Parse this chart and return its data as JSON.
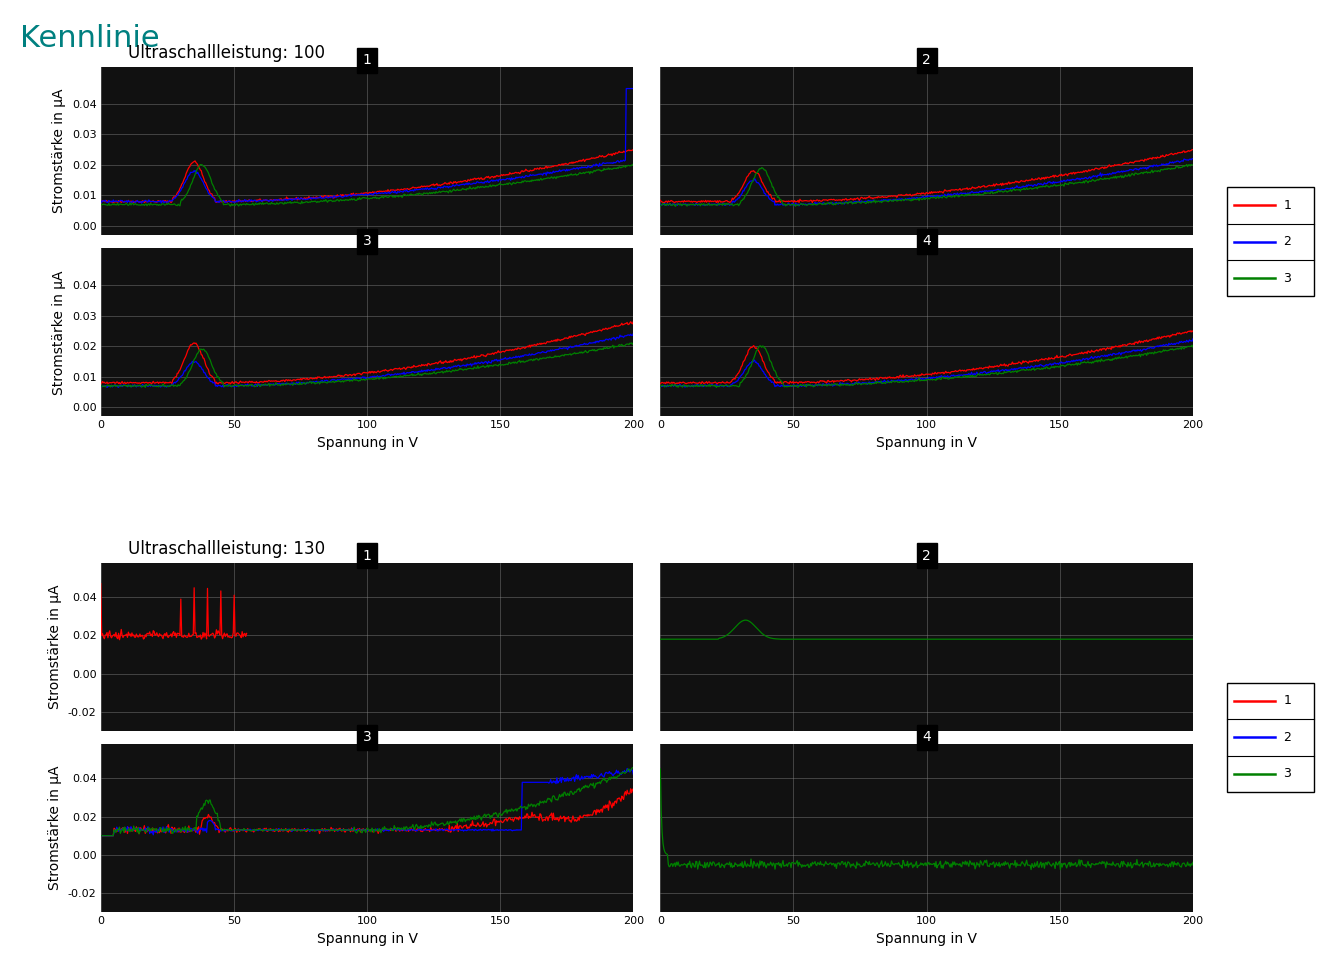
{
  "title": "Kennlinie",
  "title_color": "#008080",
  "groups": [
    {
      "subtitle": "Ultraschallleistung: 100",
      "subplots": [
        {
          "label": "1",
          "ylim": [
            -0.003,
            0.052
          ],
          "yticks": [
            0.0,
            0.01,
            0.02,
            0.03,
            0.04
          ],
          "yticklabels": [
            "0.00",
            "0.01",
            "0.02",
            "0.03",
            "0.04"
          ]
        },
        {
          "label": "2",
          "ylim": [
            -0.003,
            0.052
          ],
          "yticks": [
            0.0,
            0.01,
            0.02,
            0.03,
            0.04
          ],
          "yticklabels": []
        },
        {
          "label": "3",
          "ylim": [
            -0.003,
            0.052
          ],
          "yticks": [
            0.0,
            0.01,
            0.02,
            0.03,
            0.04
          ],
          "yticklabels": [
            "0.00",
            "0.01",
            "0.02",
            "0.03",
            "0.04"
          ]
        },
        {
          "label": "4",
          "ylim": [
            -0.003,
            0.052
          ],
          "yticks": [
            0.0,
            0.01,
            0.02,
            0.03,
            0.04
          ],
          "yticklabels": []
        }
      ]
    },
    {
      "subtitle": "Ultraschallleistung: 130",
      "subplots": [
        {
          "label": "1",
          "ylim": [
            -0.03,
            0.058
          ],
          "yticks": [
            -0.02,
            0.0,
            0.02,
            0.04
          ],
          "yticklabels": [
            "-0.02",
            "0.00",
            "0.02",
            "0.04"
          ]
        },
        {
          "label": "2",
          "ylim": [
            -0.03,
            0.058
          ],
          "yticks": [
            -0.02,
            0.0,
            0.02,
            0.04
          ],
          "yticklabels": []
        },
        {
          "label": "3",
          "ylim": [
            -0.03,
            0.058
          ],
          "yticks": [
            -0.02,
            0.0,
            0.02,
            0.04
          ],
          "yticklabels": [
            "-0.02",
            "0.00",
            "0.02",
            "0.04"
          ]
        },
        {
          "label": "4",
          "ylim": [
            -0.03,
            0.058
          ],
          "yticks": [
            -0.02,
            0.0,
            0.02,
            0.04
          ],
          "yticklabels": []
        }
      ]
    }
  ],
  "xlim": [
    0,
    200
  ],
  "xticks": [
    0,
    50,
    100,
    150,
    200
  ],
  "xlabel": "Spannung in V",
  "ylabel": "Stromstärke in µA",
  "legend_labels": [
    "1",
    "2",
    "3"
  ],
  "legend_colors": [
    "red",
    "blue",
    "green"
  ],
  "plot_bg": "#111111",
  "fig_bg": "white",
  "grid_color": "#888888"
}
